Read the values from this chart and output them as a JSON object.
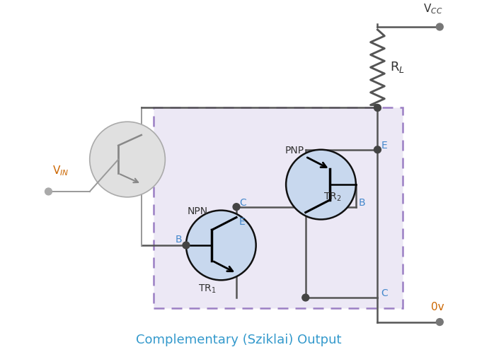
{
  "bg_color": "#ffffff",
  "dashed_box_color": "#9b7fc4",
  "dashed_box_fill": "#ece8f5",
  "title": "Complementary (Sziklai) Output",
  "title_color": "#3399cc",
  "vcc_label": "V$_{CC}$",
  "vin_label": "V$_{IN}$",
  "ov_label": "0v",
  "rl_label": "R$_L$",
  "npn_label": "NPN",
  "pnp_label": "PNP",
  "tr1_label": "TR$_1$",
  "tr2_label": "TR$_2$",
  "node_color": "#444444",
  "wire_color": "#555555",
  "transistor_fill": "#c8d8ee",
  "transistor_circle_color": "#111111",
  "label_color": "#4488cc",
  "gray_wire": "#999999",
  "gray_circle_edge": "#aaaaaa",
  "gray_fill": "#e0e0e0"
}
